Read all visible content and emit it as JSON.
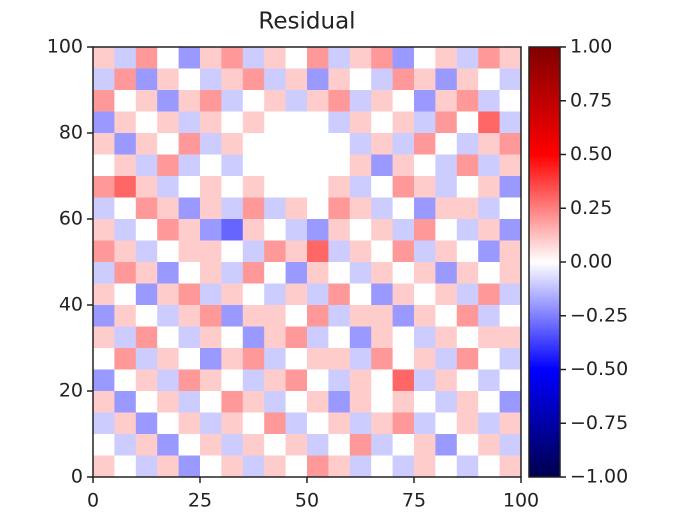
{
  "chart_data": {
    "type": "heatmap",
    "title": "Residual",
    "colormap": "seismic",
    "xlim": [
      0,
      100
    ],
    "ylim": [
      0,
      100
    ],
    "xticks": [
      0,
      25,
      50,
      75,
      100
    ],
    "yticks": [
      0,
      20,
      40,
      60,
      80,
      100
    ],
    "zlim": [
      -1,
      1
    ],
    "zticks": [
      {
        "value": 1,
        "label": "1.00"
      },
      {
        "value": 0.75,
        "label": "0.75"
      },
      {
        "value": 0.5,
        "label": "0.50"
      },
      {
        "value": 0.25,
        "label": "0.25"
      },
      {
        "value": 0,
        "label": "0.00"
      },
      {
        "value": -0.25,
        "label": "−0.25"
      },
      {
        "value": -0.5,
        "label": "−0.50"
      },
      {
        "value": -0.75,
        "label": "−0.75"
      },
      {
        "value": -1,
        "label": "−1.00"
      }
    ],
    "z": [
      [
        0.1,
        -0.1,
        0.2,
        0.0,
        -0.2,
        0.1,
        0.2,
        -0.1,
        0.1,
        0.0,
        0.2,
        -0.1,
        0.1,
        0.2,
        -0.2,
        0.0,
        0.1,
        -0.1,
        0.2,
        0.1
      ],
      [
        -0.1,
        0.2,
        -0.2,
        0.1,
        0.0,
        -0.1,
        0.1,
        0.2,
        -0.1,
        0.1,
        -0.2,
        0.1,
        0.0,
        -0.1,
        0.2,
        0.1,
        -0.2,
        0.1,
        0.0,
        -0.1
      ],
      [
        0.2,
        0.0,
        0.1,
        -0.2,
        0.1,
        0.2,
        -0.1,
        0.0,
        0.1,
        -0.1,
        0.1,
        0.2,
        -0.1,
        0.1,
        0.0,
        -0.2,
        0.1,
        0.2,
        -0.1,
        0.0
      ],
      [
        -0.2,
        0.1,
        0.0,
        0.1,
        -0.1,
        0.1,
        0.0,
        0.1,
        0,
        0,
        0,
        -0.1,
        0.1,
        0.0,
        0.1,
        -0.1,
        0.2,
        0.0,
        0.3,
        -0.1
      ],
      [
        0.1,
        -0.2,
        0.1,
        0.0,
        0.2,
        -0.1,
        0.1,
        0,
        0,
        0,
        0,
        0,
        -0.1,
        0.1,
        -0.1,
        0.2,
        0.0,
        -0.1,
        0.1,
        0.2
      ],
      [
        0.0,
        0.1,
        -0.1,
        0.2,
        -0.1,
        0.0,
        -0.1,
        0,
        0,
        0,
        0,
        0,
        0.1,
        -0.2,
        0.1,
        0.0,
        -0.1,
        0.2,
        -0.1,
        0.1
      ],
      [
        0.2,
        0.3,
        0.1,
        -0.1,
        0.0,
        0.1,
        0.0,
        0.1,
        0,
        0,
        0,
        0.1,
        -0.1,
        0.0,
        0.2,
        0.1,
        -0.1,
        0.0,
        0.1,
        -0.2
      ],
      [
        -0.1,
        0.0,
        0.2,
        0.1,
        -0.2,
        0.1,
        -0.1,
        0.2,
        -0.1,
        0.1,
        0.0,
        0.2,
        0.1,
        -0.1,
        0.0,
        -0.2,
        0.1,
        0.1,
        -0.1,
        0.0
      ],
      [
        0.1,
        -0.1,
        0.0,
        0.2,
        0.1,
        -0.2,
        -0.3,
        0.1,
        0.0,
        -0.1,
        -0.2,
        0.1,
        0.0,
        0.1,
        -0.1,
        0.2,
        0.0,
        -0.1,
        0.1,
        -0.2
      ],
      [
        0.2,
        0.1,
        -0.1,
        0.0,
        0.1,
        0.1,
        0.0,
        -0.1,
        0.2,
        0.1,
        0.3,
        -0.1,
        0.1,
        0.0,
        0.2,
        -0.1,
        0.1,
        0.0,
        -0.2,
        0.1
      ],
      [
        -0.1,
        0.2,
        0.1,
        -0.2,
        0.0,
        0.1,
        -0.1,
        0.2,
        0.0,
        -0.2,
        0.1,
        0.0,
        -0.1,
        0.1,
        0.0,
        0.1,
        -0.2,
        0.1,
        0.0,
        0.1
      ],
      [
        0.1,
        0.0,
        -0.2,
        0.1,
        0.2,
        -0.1,
        0.1,
        0.0,
        -0.1,
        0.1,
        -0.1,
        0.2,
        0.0,
        -0.2,
        0.1,
        0.0,
        0.1,
        -0.1,
        0.2,
        -0.1
      ],
      [
        -0.2,
        0.1,
        0.0,
        -0.1,
        0.1,
        0.2,
        -0.2,
        0.1,
        0.1,
        0.0,
        0.2,
        -0.1,
        0.1,
        0.1,
        -0.2,
        0.1,
        0.0,
        0.2,
        -0.1,
        0.0
      ],
      [
        0.1,
        -0.1,
        0.2,
        0.0,
        -0.1,
        0.1,
        0.0,
        -0.2,
        0.1,
        0.2,
        -0.1,
        0.0,
        -0.2,
        0.1,
        0.0,
        -0.1,
        0.1,
        0.0,
        0.1,
        0.1
      ],
      [
        0.0,
        0.2,
        -0.1,
        0.1,
        0.0,
        -0.2,
        0.1,
        0.2,
        -0.1,
        0.0,
        0.1,
        0.1,
        -0.1,
        0.2,
        0.0,
        0.1,
        -0.1,
        0.2,
        0.0,
        -0.1
      ],
      [
        -0.2,
        0.0,
        0.1,
        -0.1,
        0.2,
        0.1,
        0.0,
        -0.1,
        0.1,
        0.2,
        0.0,
        -0.1,
        0.1,
        0.0,
        0.3,
        -0.1,
        0.1,
        0.0,
        -0.1,
        0
      ],
      [
        0.1,
        -0.2,
        0.0,
        0.1,
        -0.1,
        0.0,
        0.2,
        0.1,
        -0.1,
        0.0,
        0.1,
        -0.2,
        0.1,
        0.0,
        0.1,
        0.0,
        -0.1,
        0.1,
        0.0,
        -0.2
      ],
      [
        -0.1,
        0.1,
        -0.2,
        0.0,
        0.1,
        -0.1,
        0.1,
        0.0,
        0.2,
        -0.1,
        0.0,
        0.1,
        -0.1,
        0.1,
        0.2,
        -0.1,
        0.0,
        0.1,
        -0.1,
        0.1
      ],
      [
        0.0,
        -0.1,
        0.1,
        -0.2,
        0.0,
        0.1,
        -0.1,
        0.1,
        0.0,
        0.1,
        -0.1,
        0.0,
        0.2,
        -0.1,
        0.0,
        0.1,
        -0.2,
        0.0,
        0.1,
        -0.1
      ],
      [
        0.1,
        0.0,
        -0.1,
        0.1,
        -0.2,
        0.0,
        0.1,
        -0.1,
        0.1,
        0.0,
        0.2,
        0.1,
        -0.1,
        0.0,
        -0.1,
        0.1,
        0.0,
        -0.1,
        0.0,
        0.1
      ]
    ]
  }
}
